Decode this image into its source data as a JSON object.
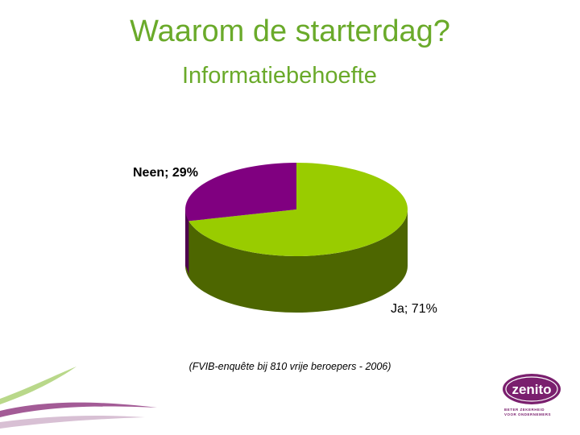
{
  "slide": {
    "title": "Waarom de starterdag?",
    "subtitle": "Informatiebehoefte",
    "source": "(FVIB-enquête bij 810 vrije beroepers - 2006)"
  },
  "logo": {
    "name": "zenito",
    "tagline_line1": "BETER ZEKERHEID",
    "tagline_line2": "VOOR ONDERNEMERS"
  },
  "colors": {
    "title": "#6aaa2a",
    "ja_top": "#99cc00",
    "ja_side": "#4d6600",
    "neen_top": "#800080",
    "neen_side": "#4d004d",
    "logo_purple": "#7a1f6e"
  },
  "chart_data": {
    "type": "pie",
    "style": "3d",
    "slices": [
      {
        "label": "Ja",
        "value": 71,
        "text": "Ja; 71%"
      },
      {
        "label": "Neen",
        "value": 29,
        "text": "Neen; 29%"
      }
    ]
  }
}
